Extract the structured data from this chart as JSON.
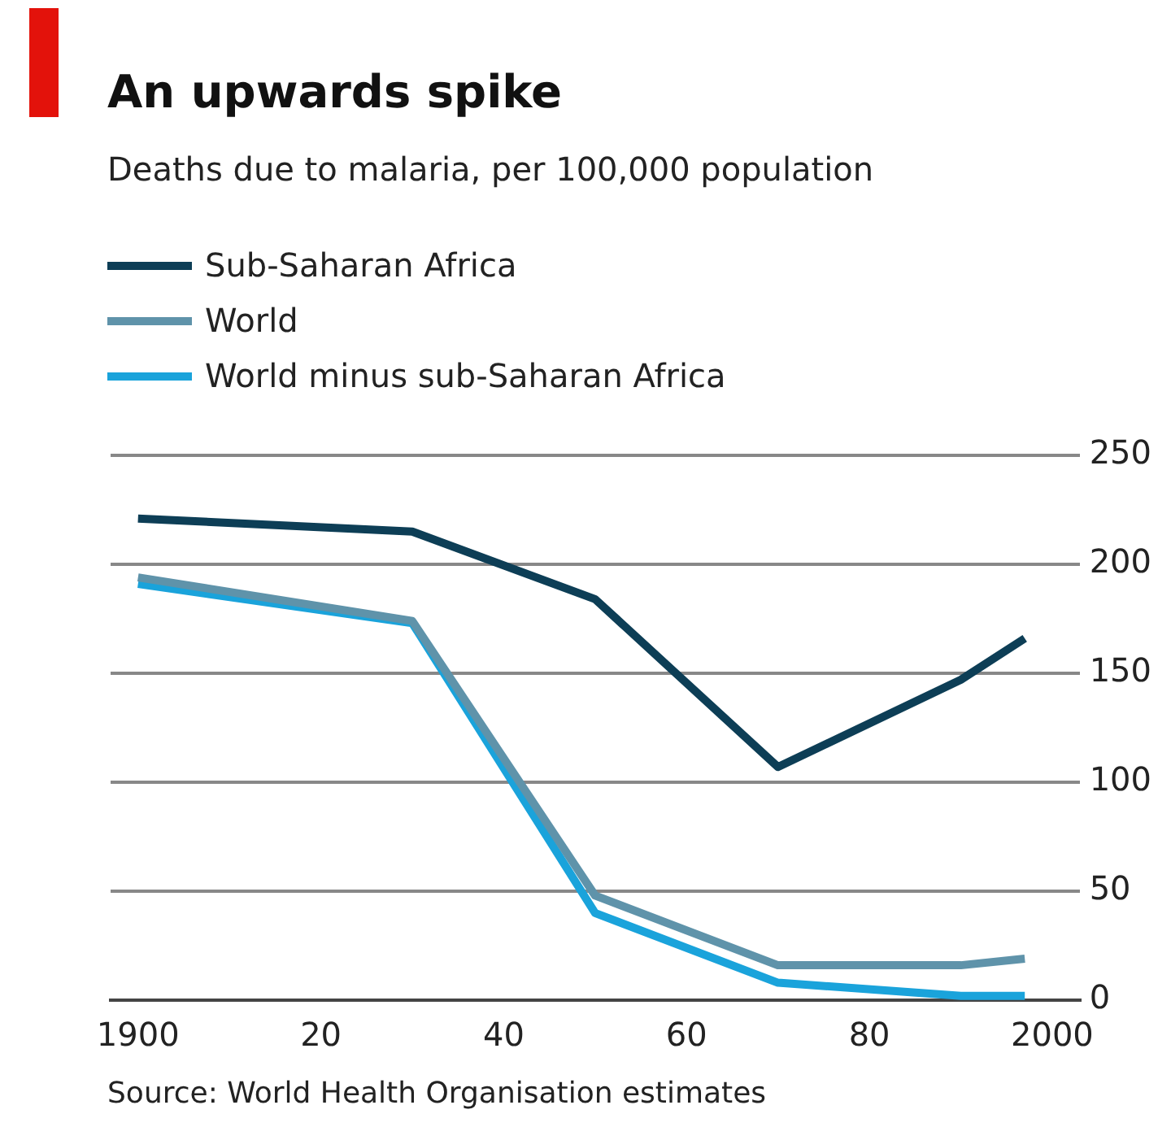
{
  "chart_data": {
    "type": "line",
    "title": "An upwards spike",
    "subtitle": "Deaths due to malaria, per 100,000 population",
    "x": [
      1900,
      1930,
      1950,
      1970,
      1990,
      1997
    ],
    "series": [
      {
        "name": "Sub-Saharan Africa",
        "color": "#0d3e56",
        "values": [
          221,
          215,
          184,
          107,
          147,
          166
        ]
      },
      {
        "name": "World",
        "color": "#5f93aa",
        "values": [
          194,
          174,
          48,
          16,
          16,
          19
        ]
      },
      {
        "name": "World minus sub-Saharan Africa",
        "color": "#1aa3db",
        "values": [
          191,
          173,
          40,
          8,
          2,
          2
        ]
      }
    ],
    "xlim": [
      1897,
      2003
    ],
    "xticks": [
      1900,
      {
        "value": 1920,
        "label": "20"
      },
      {
        "value": 1940,
        "label": "40"
      },
      {
        "value": 1960,
        "label": "60"
      },
      {
        "value": 1980,
        "label": "80"
      },
      2000
    ],
    "ylim": [
      0,
      250
    ],
    "yticks": [
      0,
      50,
      100,
      150,
      200,
      250
    ],
    "grid": "y",
    "legend": "top left",
    "marker": "none",
    "line_style": "solid",
    "annotations": [
      "Source: World Health Organisation estimates"
    ]
  }
}
